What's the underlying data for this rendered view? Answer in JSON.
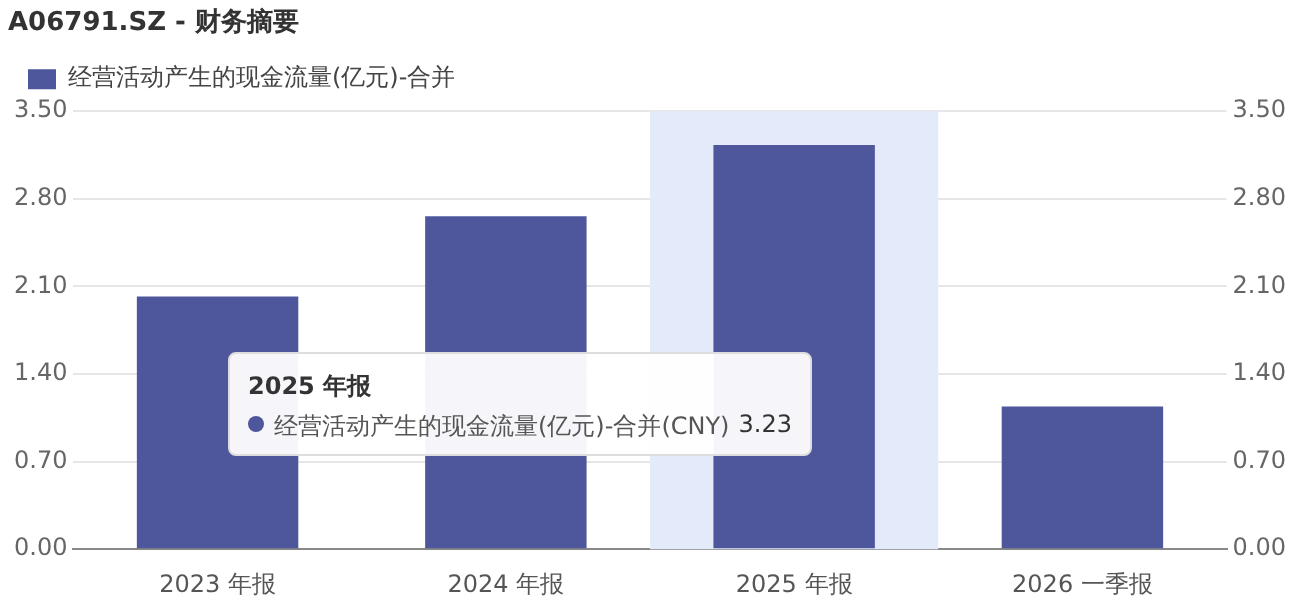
{
  "chart_data": {
    "type": "bar",
    "title": "A06791.SZ - 财务摘要",
    "categories": [
      "2023 年报",
      "2024 年报",
      "2025 年报",
      "2026 一季报"
    ],
    "series": [
      {
        "name": "经营活动产生的现金流量(亿元)-合并",
        "color": "#4e579b",
        "values": [
          2.02,
          2.66,
          3.23,
          1.14
        ]
      }
    ],
    "ylim": [
      0,
      3.5
    ],
    "yticks": [
      {
        "value": 0,
        "label": "0.00"
      },
      {
        "value": 0.7,
        "label": "0.70"
      },
      {
        "value": 1.4,
        "label": "1.40"
      },
      {
        "value": 2.1,
        "label": "2.10"
      },
      {
        "value": 2.8,
        "label": "2.80"
      },
      {
        "value": 3.5,
        "label": "3.50"
      }
    ],
    "y2lim": [
      0,
      3.5
    ],
    "y2ticks": [
      {
        "value": 0,
        "label": "0.00"
      },
      {
        "value": 0.7,
        "label": "0.70"
      },
      {
        "value": 1.4,
        "label": "1.40"
      },
      {
        "value": 2.1,
        "label": "2.10"
      },
      {
        "value": 2.8,
        "label": "2.80"
      },
      {
        "value": 3.5,
        "label": "3.50"
      }
    ],
    "grid": "y",
    "legend": "top left",
    "bands": [
      {
        "axis": "x",
        "from": "2025 年报",
        "to": "2025 年报",
        "color": "#e3ebfb"
      }
    ],
    "annotations": [
      "2025 年报",
      "经营活动产生的现金流量(亿元)-合并(CNY)",
      "3.23"
    ]
  }
}
